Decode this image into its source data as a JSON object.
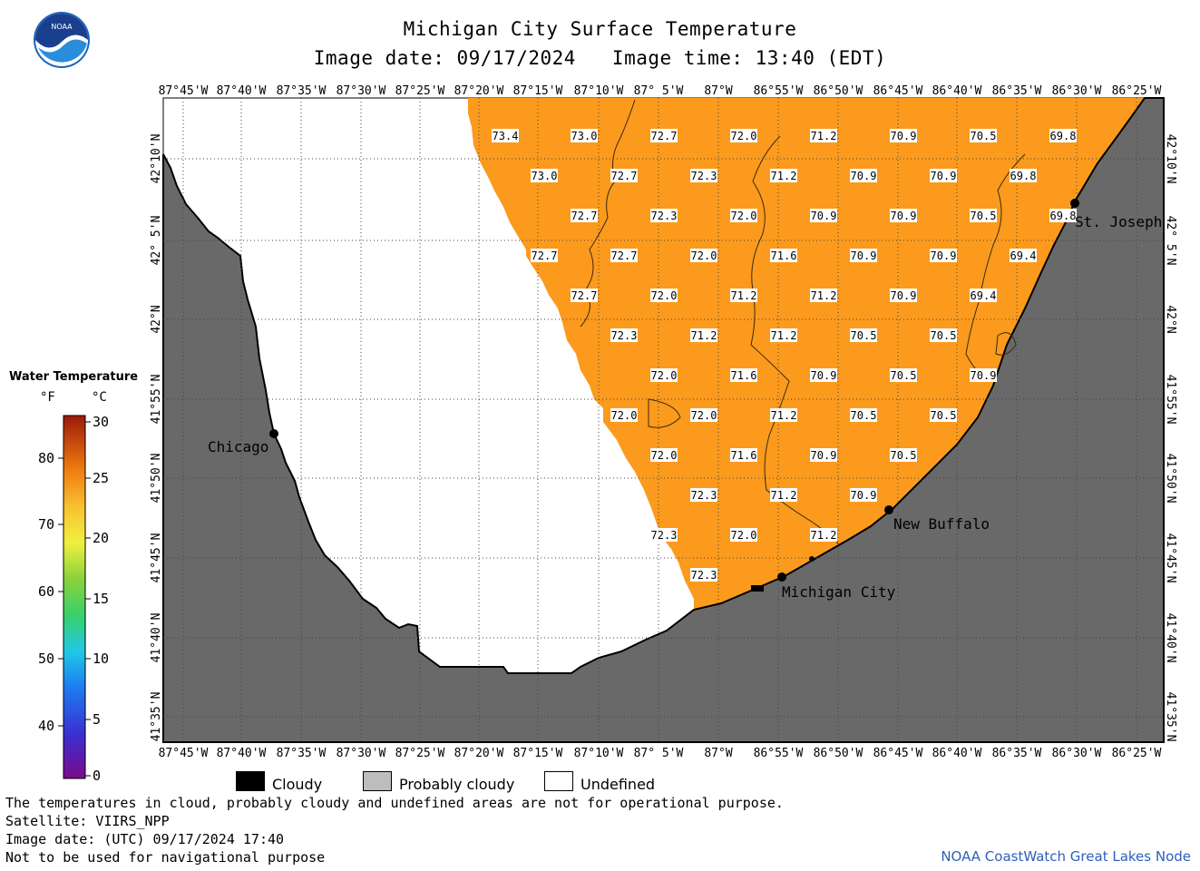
{
  "header": {
    "title": "Michigan City Surface Temperature",
    "image_date": "Image date: 09/17/2024",
    "image_time": "Image time: 13:40 (EDT)"
  },
  "logo": {
    "text": "NOAA",
    "icon": "noaa-logo-icon"
  },
  "map": {
    "lon_ticks": [
      "87°45'W",
      "87°40'W",
      "87°35'W",
      "87°30'W",
      "87°25'W",
      "87°20'W",
      "87°15'W",
      "87°10'W",
      "87° 5'W",
      "87°W",
      "86°55'W",
      "86°50'W",
      "86°45'W",
      "86°40'W",
      "86°35'W",
      "86°30'W",
      "86°25'W"
    ],
    "lat_ticks": [
      "42°10'N",
      "42° 5'N",
      "42°N",
      "41°55'N",
      "41°50'N",
      "41°45'N",
      "41°40'N",
      "41°35'N"
    ],
    "cities": [
      {
        "name": "Chicago"
      },
      {
        "name": "St. Joseph"
      },
      {
        "name": "New Buffalo"
      },
      {
        "name": "Michigan City"
      }
    ],
    "temperature_labels": [
      "73.4",
      "73.0",
      "72.7",
      "72.0",
      "71.2",
      "70.9",
      "70.5",
      "69.8",
      "73.0",
      "72.7",
      "72.3",
      "71.2",
      "70.9",
      "70.9",
      "69.8",
      "72.7",
      "72.3",
      "72.0",
      "70.9",
      "70.9",
      "70.5",
      "69.8",
      "72.7",
      "72.7",
      "72.0",
      "71.6",
      "70.9",
      "70.9",
      "69.4",
      "72.7",
      "72.0",
      "71.2",
      "71.2",
      "70.9",
      "69.4",
      "72.3",
      "71.2",
      "71.2",
      "70.5",
      "70.5",
      "72.0",
      "71.6",
      "70.9",
      "70.5",
      "70.9",
      "72.0",
      "72.0",
      "71.2",
      "70.5",
      "70.5",
      "72.0",
      "71.6",
      "70.9",
      "70.5",
      "72.3",
      "71.2",
      "70.9",
      "72.3",
      "72.0",
      "71.2",
      "72.3"
    ],
    "colors": {
      "land": "#696969",
      "water": "#fb9a1c",
      "undefined": "#ffffff",
      "grid": "#555555"
    }
  },
  "legend": {
    "title": "Water Temperature",
    "unit_f": "°F",
    "unit_c": "°C",
    "f_ticks": [
      "80",
      "70",
      "60",
      "50",
      "40"
    ],
    "c_ticks": [
      "30",
      "25",
      "20",
      "15",
      "10",
      "5",
      "0"
    ]
  },
  "key": {
    "cloudy": "Cloudy",
    "probably_cloudy": "Probably cloudy",
    "undefined": "Undefined"
  },
  "footer": {
    "disclaimer": "The temperatures in cloud, probably cloudy and undefined areas are not for operational purpose.",
    "satellite": "Satellite: VIIRS_NPP",
    "utc_date": "Image date: (UTC) 09/17/2024  17:40",
    "nav": "Not to be used for navigational purpose",
    "credit": "NOAA CoastWatch Great Lakes Node"
  }
}
